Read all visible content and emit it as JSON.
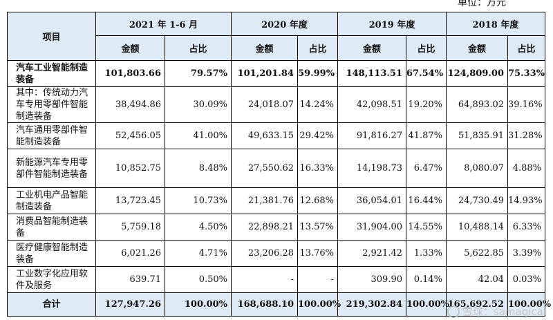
{
  "unit_label": "单位：万元",
  "header": {
    "item": "项目",
    "periods": [
      "2021 年 1-6 月",
      "2020 年度",
      "2019 年度",
      "2018 年度"
    ],
    "amount": "金额",
    "ratio": "占比"
  },
  "rows": [
    {
      "name": "汽车工业智能制造装备",
      "bold": true,
      "values": [
        "101,803.66",
        "79.57%",
        "101,201.84",
        "59.99%",
        "148,113.51",
        "67.54%",
        "124,809.00",
        "75.33%"
      ]
    },
    {
      "name": "其中：传统动力汽车专用零部件智能制造装备",
      "bold": false,
      "values": [
        "38,494.86",
        "30.09%",
        "24,018.07",
        "14.24%",
        "42,098.51",
        "19.20%",
        "64,893.02",
        "39.16%"
      ]
    },
    {
      "name": "汽车通用零部件智能制造装备",
      "bold": false,
      "values": [
        "52,456.05",
        "41.00%",
        "49,633.15",
        "29.42%",
        "91,816.27",
        "41.87%",
        "51,835.91",
        "31.28%"
      ]
    },
    {
      "name": "新能源汽车专用零部件智能制造装备",
      "bold": false,
      "values": [
        "10,852.75",
        "8.48%",
        "27,550.62",
        "16.33%",
        "14,198.73",
        "6.47%",
        "8,080.07",
        "4.88%"
      ]
    },
    {
      "name": "工业机电产品智能制造装备",
      "bold": false,
      "values": [
        "13,723.45",
        "10.73%",
        "21,381.76",
        "12.68%",
        "36,054.01",
        "16.44%",
        "24,730.49",
        "14.93%"
      ]
    },
    {
      "name": "消费品智能制造装备",
      "bold": false,
      "values": [
        "5,759.18",
        "4.50%",
        "22,898.21",
        "13.57%",
        "31,904.00",
        "14.55%",
        "10,488.14",
        "6.33%"
      ]
    },
    {
      "name": "医疗健康智能制造装备",
      "bold": false,
      "values": [
        "6,021.26",
        "4.71%",
        "23,206.28",
        "13.76%",
        "2,921.42",
        "1.33%",
        "5,622.85",
        "3.39%"
      ]
    },
    {
      "name": "工业数字化应用软件及服务",
      "bold": false,
      "values": [
        "639.71",
        "0.50%",
        "-",
        "-",
        "309.90",
        "0.14%",
        "42.04",
        "0.03%"
      ]
    }
  ],
  "total": {
    "name": "合计",
    "values": [
      "127,947.26",
      "100.00%",
      "168,688.10",
      "100.00%",
      "219,302.84",
      "100.00%",
      "165,692.52",
      "100.00%"
    ]
  },
  "watermark": "雪球：samagical"
}
